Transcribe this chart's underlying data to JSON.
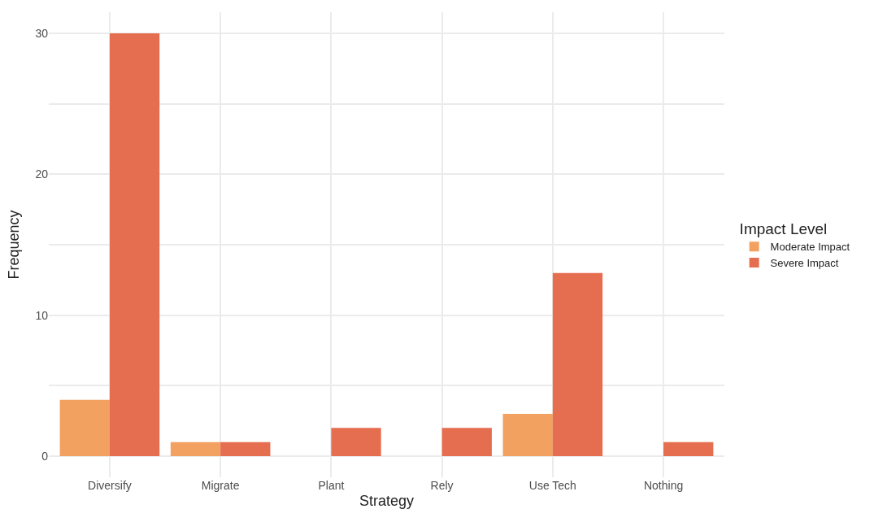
{
  "chart_data": {
    "type": "bar",
    "xlabel": "Strategy",
    "ylabel": "Frequency",
    "legend_title": "Impact Level",
    "categories": [
      "Diversify",
      "Migrate",
      "Plant",
      "Rely",
      "Use Tech",
      "Nothing"
    ],
    "series": [
      {
        "name": "Moderate Impact",
        "color": "#f2a160",
        "values": [
          4,
          1,
          null,
          null,
          3,
          null
        ]
      },
      {
        "name": "Severe Impact",
        "color": "#e66e50",
        "values": [
          30,
          1,
          2,
          2,
          13,
          1
        ]
      }
    ],
    "ylim": [
      -1.5,
      31.5
    ],
    "yticks": [
      0,
      {
        "value": 5,
        "label": null
      },
      10,
      {
        "value": 15,
        "label": null
      },
      20,
      {
        "value": 25,
        "label": null
      },
      30
    ],
    "grid": true,
    "legend": "right"
  }
}
